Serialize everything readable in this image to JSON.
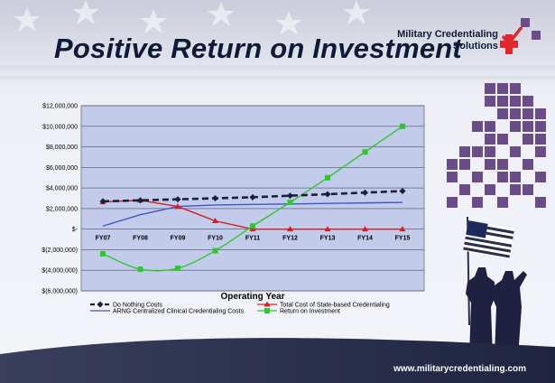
{
  "slide": {
    "title": "Positive Return on Investment",
    "logo_line1": "Military Credentialing",
    "logo_line2": "Solutions",
    "footer_url": "www.militarycredentialing.com"
  },
  "colors": {
    "navy": "#101a38",
    "plot_bg": "#c3cbea",
    "logo_red": "#e2262b",
    "pixel_purple": "#6a4c88"
  },
  "chart_data": {
    "type": "line",
    "xlabel": "Operating Year",
    "ylabel": "",
    "title": "",
    "categories": [
      "FY07",
      "FY08",
      "FY09",
      "FY10",
      "FY11",
      "FY12",
      "FY13",
      "FY14",
      "FY15"
    ],
    "ylim": [
      -6000000,
      12000000
    ],
    "yticks": [
      12000000,
      10000000,
      8000000,
      6000000,
      4000000,
      2000000,
      0,
      -2000000,
      -4000000,
      -6000000
    ],
    "ytick_labels": [
      "$12,000,000",
      "$10,000,000",
      "$8,000,000",
      "$6,000,000",
      "$4,000,000",
      "$2,000,000",
      "$-",
      "$(2,000,000)",
      "$(4,000,000)",
      "$(6,000,000)"
    ],
    "grid": true,
    "legend_position": "bottom",
    "series": [
      {
        "name": "Do Nothing Costs",
        "color": "#1a1f3d",
        "marker": "diamond",
        "dashed": true,
        "values": [
          2700000,
          2800000,
          2900000,
          3000000,
          3100000,
          3250000,
          3400000,
          3550000,
          3700000
        ]
      },
      {
        "name": "Total Cost of State-based Credentialing",
        "color": "#d21f1f",
        "marker": "triangle",
        "dashed": false,
        "values": [
          2650000,
          2800000,
          2200000,
          800000,
          0,
          0,
          0,
          0,
          0
        ]
      },
      {
        "name": "ARNG Centralized Clinical Credentialing Costs",
        "color": "#3d55c8",
        "marker": "none",
        "dashed": false,
        "values": [
          300000,
          1400000,
          2200000,
          2350000,
          2400000,
          2450000,
          2500000,
          2550000,
          2600000
        ]
      },
      {
        "name": "Return on Investment",
        "color": "#2ec82e",
        "marker": "square",
        "dashed": false,
        "smooth": true,
        "values": [
          -2400000,
          -3900000,
          -3800000,
          -2100000,
          300000,
          2600000,
          5000000,
          7500000,
          10000000
        ]
      }
    ]
  }
}
